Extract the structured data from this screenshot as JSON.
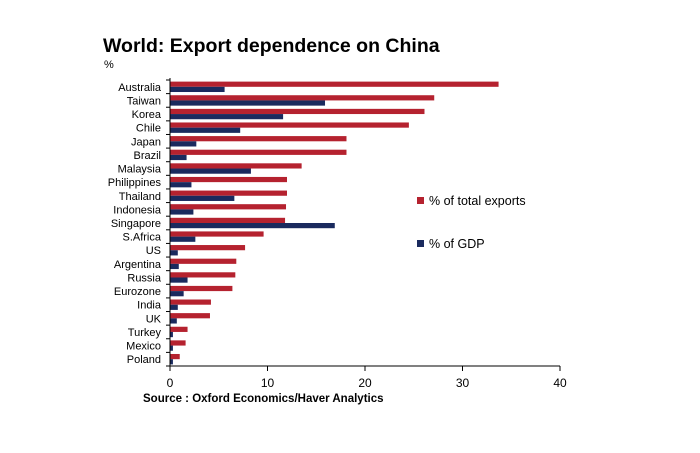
{
  "chart_data": {
    "type": "bar",
    "orientation": "horizontal",
    "title": "World: Export dependence on China",
    "ylabel": "%",
    "source": "Source : Oxford Economics/Haver Analytics",
    "categories": [
      "Australia",
      "Taiwan",
      "Korea",
      "Chile",
      "Japan",
      "Brazil",
      "Malaysia",
      "Philippines",
      "Thailand",
      "Indonesia",
      "Singapore",
      "S.Africa",
      "US",
      "Argentina",
      "Russia",
      "Eurozone",
      "India",
      "UK",
      "Turkey",
      "Mexico",
      "Poland"
    ],
    "series": [
      {
        "name": "% of total exports",
        "color": "#b5222f",
        "values": [
          33.7,
          27.1,
          26.1,
          24.5,
          18.1,
          18.1,
          13.5,
          12.0,
          12.0,
          11.9,
          11.8,
          9.6,
          7.7,
          6.8,
          6.7,
          6.4,
          4.2,
          4.1,
          1.8,
          1.6,
          1.0
        ]
      },
      {
        "name": "% of GDP",
        "color": "#1a2a5e",
        "values": [
          5.6,
          15.9,
          11.6,
          7.2,
          2.7,
          1.7,
          8.3,
          2.2,
          6.6,
          2.4,
          16.9,
          2.6,
          0.8,
          0.9,
          1.8,
          1.4,
          0.8,
          0.7,
          0.3,
          0.3,
          0.3
        ]
      }
    ],
    "xlim": [
      0,
      40
    ],
    "xticks": [
      "0",
      "10",
      "20",
      "30",
      "40"
    ],
    "grid": false,
    "legend_position": "right"
  }
}
